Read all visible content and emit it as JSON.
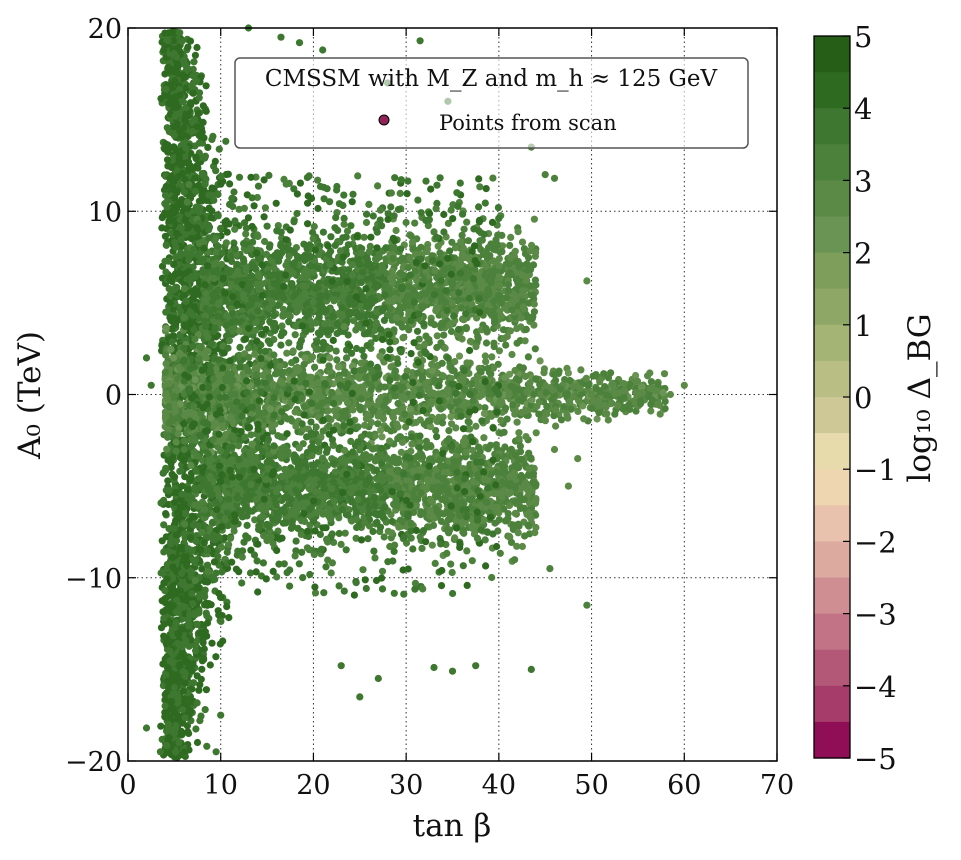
{
  "chart_data": {
    "type": "scatter",
    "title": "",
    "xlabel": "tan β",
    "ylabel": "A₀ (TeV)",
    "xlim": [
      0,
      70
    ],
    "ylim": [
      -20,
      20
    ],
    "xticks": [
      0,
      10,
      20,
      30,
      40,
      50,
      60,
      70
    ],
    "yticks": [
      -20,
      -10,
      0,
      10,
      20
    ],
    "xtick_labels": [
      "0",
      "10",
      "20",
      "30",
      "40",
      "50",
      "60",
      "70"
    ],
    "ytick_labels": [
      "−20",
      "−10",
      "0",
      "10",
      "20"
    ],
    "grid": true,
    "grid_style": "dotted",
    "legend": {
      "position": "top-center",
      "title": "CMSSM with M_Z and m_h ≈ 125 GeV",
      "entries": [
        "Points from scan"
      ],
      "marker_color": "#8e2556"
    },
    "colorbar": {
      "label": "log₁₀ Δ_BG",
      "range": [
        -5,
        5
      ],
      "ticks": [
        "5",
        "4",
        "3",
        "2",
        "1",
        "0",
        "−1",
        "−2",
        "−3",
        "−4",
        "−5"
      ],
      "levels": 20,
      "colormap_high_to_low": [
        "#275e17",
        "#2f6a21",
        "#3e7730",
        "#4c813c",
        "#5b8a47",
        "#6a9453",
        "#7e9e5c",
        "#8fa766",
        "#a4b474",
        "#b8be84",
        "#cdc896",
        "#e7dbac",
        "#eed6b1",
        "#e8c2ac",
        "#ddaaa0",
        "#cf8f92",
        "#c27486",
        "#b45878",
        "#a53c69",
        "#900e55"
      ]
    },
    "series": [
      {
        "description_points": [
          [
            2.0,
            2.0
          ],
          [
            2.5,
            0.5
          ],
          [
            2.0,
            -18.2
          ],
          [
            3.5,
            -19.5
          ],
          [
            4.0,
            -17.0
          ],
          [
            4.5,
            -14.0
          ],
          [
            5.0,
            -18.5
          ],
          [
            5.5,
            -19.0
          ],
          [
            8.5,
            -19.2
          ],
          [
            9.5,
            -19.5
          ],
          [
            10.0,
            -17.5
          ],
          [
            13.0,
            20.0
          ],
          [
            16.5,
            19.5
          ],
          [
            18.5,
            19.2
          ],
          [
            21.0,
            18.8
          ],
          [
            28.0,
            17.0
          ],
          [
            31.5,
            19.3
          ],
          [
            34.5,
            16.0
          ],
          [
            43.5,
            13.5
          ],
          [
            45.0,
            12.0
          ],
          [
            46.0,
            11.8
          ],
          [
            49.5,
            6.2
          ],
          [
            49.5,
            -11.5
          ],
          [
            45.5,
            -9.5
          ],
          [
            43.5,
            -15.0
          ],
          [
            37.5,
            -14.8
          ],
          [
            33.0,
            -14.9
          ],
          [
            35.0,
            -15.1
          ],
          [
            27.0,
            -15.5
          ],
          [
            25.0,
            -16.5
          ],
          [
            23.0,
            -14.8
          ],
          [
            60.0,
            0.5
          ],
          [
            58.5,
            0.0
          ],
          [
            57.0,
            0.2
          ],
          [
            55.5,
            0.1
          ],
          [
            53.0,
            0.1
          ],
          [
            50.0,
            0.0
          ],
          [
            46.0,
            -3.0
          ],
          [
            47.5,
            -5.0
          ],
          [
            48.5,
            -3.5
          ]
        ],
        "log10_delta_BG": [
          4,
          4,
          4,
          4,
          4,
          4,
          4,
          4,
          4,
          4,
          4,
          4,
          4,
          4,
          4,
          4,
          4,
          4,
          3.5,
          3.5,
          3.5,
          3,
          3.5,
          3.5,
          4,
          4,
          4,
          4,
          4,
          4,
          4,
          3,
          3,
          3,
          3,
          3,
          3,
          3,
          3,
          3
        ]
      }
    ],
    "regions": [
      {
        "name": "main column",
        "x_range": [
          3,
          14
        ],
        "y_range": [
          -20,
          20
        ],
        "log10_delta_BG": [
          3.5,
          4.5
        ]
      },
      {
        "name": "upper lobe",
        "x_range": [
          10,
          44
        ],
        "y_range": [
          2,
          10
        ],
        "log10_delta_BG": [
          2.5,
          3.5
        ]
      },
      {
        "name": "central band",
        "x_range": [
          3,
          60
        ],
        "y_range": [
          -1.5,
          1.5
        ],
        "log10_delta_BG": [
          2.5,
          3.5
        ]
      },
      {
        "name": "lower lobe",
        "x_range": [
          10,
          44
        ],
        "y_range": [
          -8,
          -2
        ],
        "log10_delta_BG": [
          2.5,
          3.5
        ]
      }
    ]
  }
}
